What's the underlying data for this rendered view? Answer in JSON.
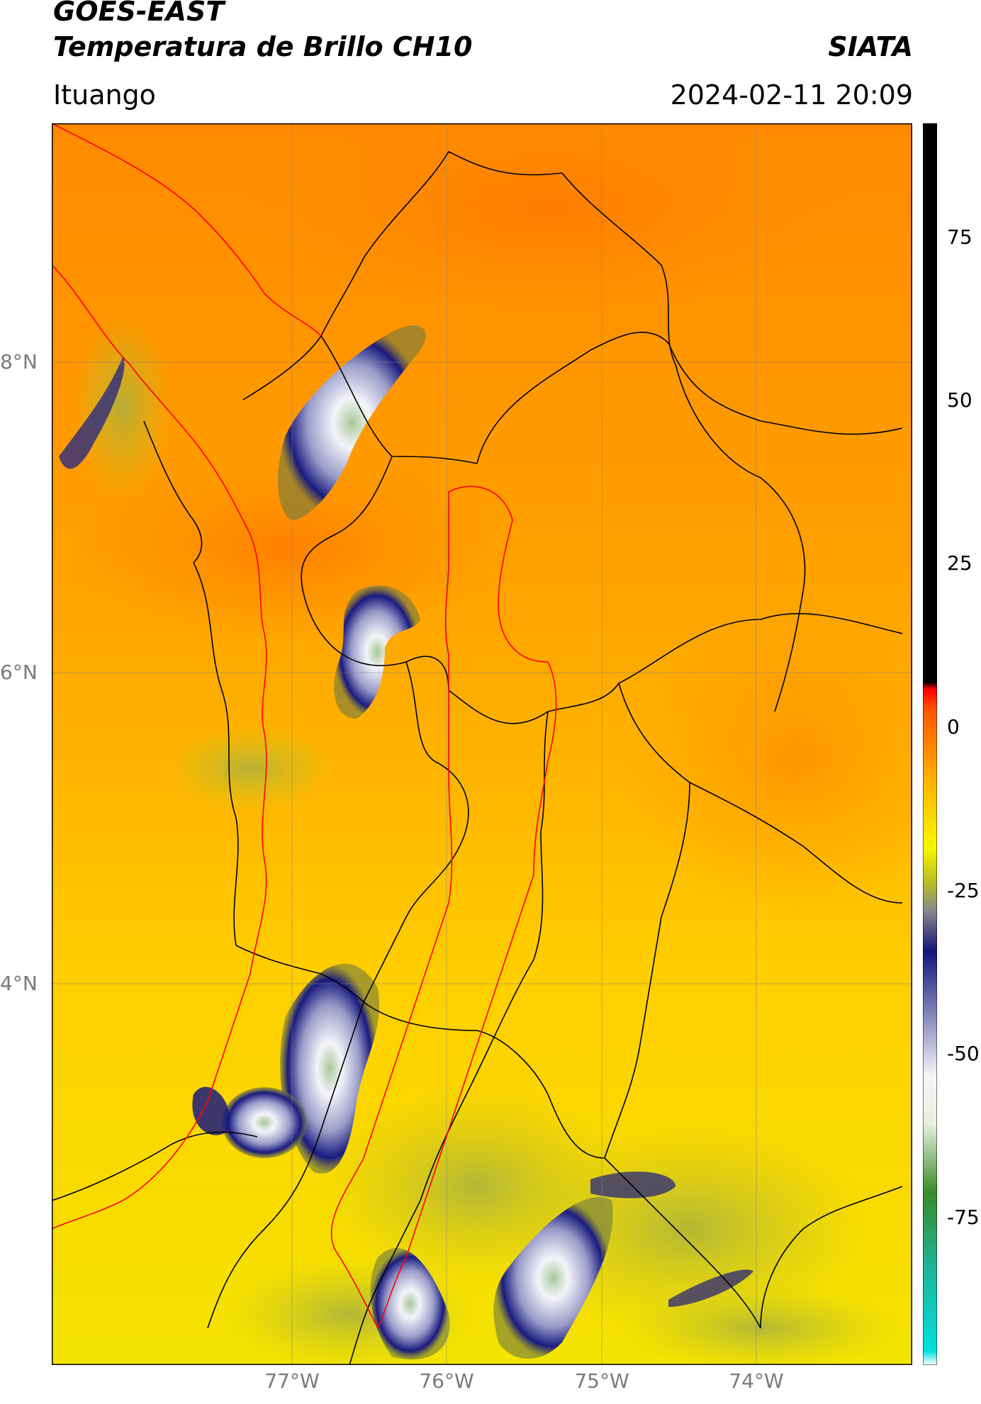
{
  "header": {
    "satellite": "GOES-EAST",
    "product": "Temperatura de Brillo CH10",
    "agency": "SIATA",
    "location": "Ituango",
    "datetime": "2024-02-11 20:09"
  },
  "axes": {
    "lat_labels": [
      "8°N",
      "6°N",
      "4°N"
    ],
    "lon_labels": [
      "77°W",
      "76°W",
      "75°W",
      "74°W"
    ]
  },
  "colorbar": {
    "ticks": [
      "75",
      "50",
      "25",
      "0",
      "-25",
      "-50",
      "-75"
    ],
    "range": [
      -90,
      90
    ],
    "stops": [
      {
        "value": -90,
        "color": "#ffffff"
      },
      {
        "value": -88,
        "color": "#00e0e0"
      },
      {
        "value": -75,
        "color": "#20b090"
      },
      {
        "value": -65,
        "color": "#3a8a2a"
      },
      {
        "value": -55,
        "color": "#e8f0e0"
      },
      {
        "value": -48,
        "color": "#f4f4f8"
      },
      {
        "value": -40,
        "color": "#8d90c0"
      },
      {
        "value": -30,
        "color": "#15157a"
      },
      {
        "value": -24,
        "color": "#8a8a8a"
      },
      {
        "value": -20,
        "color": "#b8c020"
      },
      {
        "value": -15,
        "color": "#f6f600"
      },
      {
        "value": -5,
        "color": "#ffb000"
      },
      {
        "value": 5,
        "color": "#ff5500"
      },
      {
        "value": 8,
        "color": "#ff0000"
      },
      {
        "value": 9,
        "color": "#000000"
      },
      {
        "value": 90,
        "color": "#000000"
      }
    ]
  },
  "map": {
    "colors": {
      "background_warm": "#ff9a00",
      "background_yellow": "#ffd400",
      "cloud_dark": "#1a1a80",
      "cloud_light": "#f0f0f8",
      "cloud_core": "#7fb070",
      "border_black": "#000000",
      "border_red": "#ff0000"
    }
  }
}
